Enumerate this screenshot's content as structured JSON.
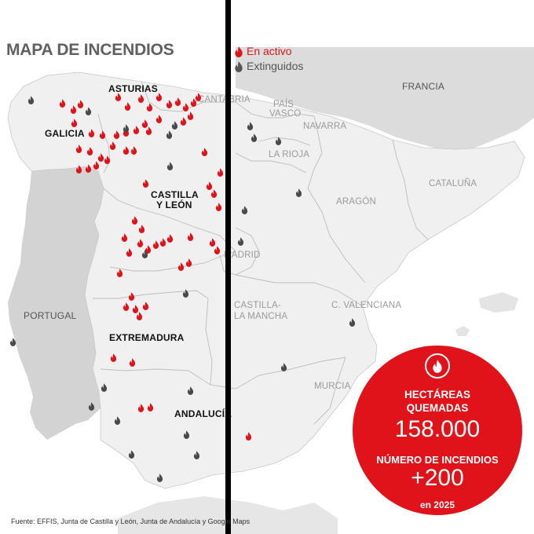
{
  "title": "MAPA DE INCENDIOS",
  "legend": {
    "active_label": "En activo",
    "extinguished_label": "Extinguidos",
    "active_color": "#d9161c",
    "extinguished_color": "#555555",
    "icon": "flame-icon"
  },
  "regions": {
    "asturias": "ASTURIAS",
    "cantabria": "CANTABRIA",
    "pais_vasco_1": "PAÍS",
    "pais_vasco_2": "VASCO",
    "navarra": "NAVARRA",
    "galicia": "GALICIA",
    "la_rioja": "LA RIOJA",
    "castilla_leon_1": "CASTILLA",
    "castilla_leon_2": "Y LEÓN",
    "aragon": "ARAGÓN",
    "cataluna": "CATALUÑA",
    "francia": "FRANCIA",
    "madrid": "MADRID",
    "portugal": "PORTUGAL",
    "castilla_mancha_1": "CASTILLA-",
    "castilla_mancha_2": "LA MANCHA",
    "valenciana": "C. VALENCIANA",
    "extremadura": "EXTREMADURA",
    "murcia": "MURCIA",
    "andalucia": "ANDALUCÍA"
  },
  "stats": {
    "icon": "flame-icon",
    "hectares_label_1": "HECTÁREAS",
    "hectares_label_2": "QUEMADAS",
    "hectares_value": "158.000",
    "fires_label": "NÚMERO DE INCENDIOS",
    "fires_value": "+200",
    "year_label": "en 2025"
  },
  "source": "Fuente: EFFIS, Junta de Castilla y León, Junta de Andalucía y Google Maps"
}
